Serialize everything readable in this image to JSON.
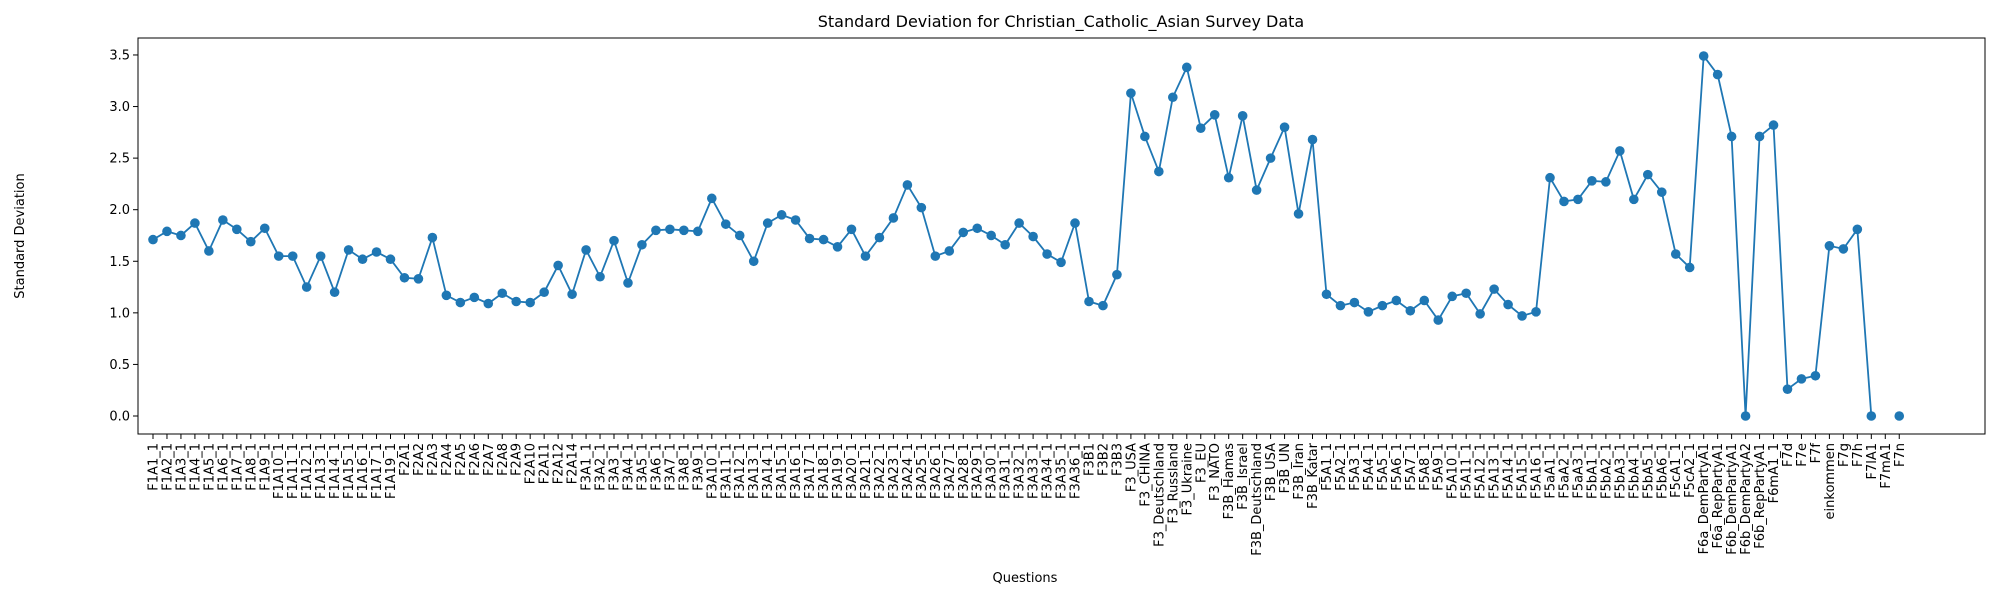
{
  "chart_data": {
    "type": "line",
    "title": "Standard Deviation for Christian_Catholic_Asian Survey Data",
    "x_label": "Questions",
    "y_label": "Standard Deviation",
    "categories": [
      "F1A1_1",
      "F1A2_1",
      "F1A3_1",
      "F1A4_1",
      "F1A5_1",
      "F1A6_1",
      "F1A7_1",
      "F1A8_1",
      "F1A9_1",
      "F1A10_1",
      "F1A11_1",
      "F1A12_1",
      "F1A13_1",
      "F1A14_1",
      "F1A15_1",
      "F1A16_1",
      "F1A17_1",
      "F1A19_1",
      "F2A1",
      "F2A2",
      "F2A3",
      "F2A4",
      "F2A5",
      "F2A6",
      "F2A7",
      "F2A8",
      "F2A9",
      "F2A10",
      "F2A11",
      "F2A12",
      "F2A14",
      "F3A1_1",
      "F3A2_1",
      "F3A3_1",
      "F3A4_1",
      "F3A5_1",
      "F3A6_1",
      "F3A7_1",
      "F3A8_1",
      "F3A9_1",
      "F3A10_1",
      "F3A11_1",
      "F3A12_1",
      "F3A13_1",
      "F3A14_1",
      "F3A15_1",
      "F3A16_1",
      "F3A17_1",
      "F3A18_1",
      "F3A19_1",
      "F3A20_1",
      "F3A21_1",
      "F3A22_1",
      "F3A23_1",
      "F3A24_1",
      "F3A25_1",
      "F3A26_1",
      "F3A27_1",
      "F3A28_1",
      "F3A29_1",
      "F3A30_1",
      "F3A31_1",
      "F3A32_1",
      "F3A33_1",
      "F3A34_1",
      "F3A35_1",
      "F3A36_1",
      "F3B1",
      "F3B2",
      "F3B3",
      "F3_USA",
      "F3_CHINA",
      "F3_Deutschland",
      "F3_Russland",
      "F3_Ukraine",
      "F3_EU",
      "F3_NATO",
      "F3B_Hamas",
      "F3B_Israel",
      "F3B_Deutschland",
      "F3B_USA",
      "F3B_UN",
      "F3B_Iran",
      "F3B_Katar",
      "F5A1_1",
      "F5A2_1",
      "F5A3_1",
      "F5A4_1",
      "F5A5_1",
      "F5A6_1",
      "F5A7_1",
      "F5A8_1",
      "F5A9_1",
      "F5A10_1",
      "F5A11_1",
      "F5A12_1",
      "F5A13_1",
      "F5A14_1",
      "F5A15_1",
      "F5A16_1",
      "F5aA1_1",
      "F5aA2_1",
      "F5aA3_1",
      "F5bA1_1",
      "F5bA2_1",
      "F5bA3_1",
      "F5bA4_1",
      "F5bA5_1",
      "F5bA6_1",
      "F5cA1_1",
      "F5cA2_1",
      "F6a_DemPartyA1",
      "F6a_RepPartyA1",
      "F6b_DemPartyA1",
      "F6b_DemPartyA2",
      "F6b_RepPartyA1",
      "F6mA1_1",
      "F7d",
      "F7e",
      "F7f",
      "einkommen",
      "F7g",
      "F7h",
      "F7lA1",
      "F7mA1",
      "F7n"
    ],
    "series": [
      {
        "name": "Standard Deviation",
        "color": "#1f77b4",
        "values": [
          1.71,
          1.79,
          1.75,
          1.87,
          1.6,
          1.9,
          1.81,
          1.69,
          1.82,
          1.55,
          1.55,
          1.25,
          1.55,
          1.2,
          1.61,
          1.52,
          1.59,
          1.52,
          1.34,
          1.33,
          1.73,
          1.17,
          1.1,
          1.15,
          1.09,
          1.19,
          1.11,
          1.1,
          1.2,
          1.46,
          1.18,
          1.61,
          1.35,
          1.7,
          1.29,
          1.66,
          1.8,
          1.81,
          1.8,
          1.79,
          2.11,
          1.86,
          1.75,
          1.5,
          1.87,
          1.95,
          1.9,
          1.72,
          1.71,
          1.64,
          1.81,
          1.55,
          1.73,
          1.92,
          2.24,
          2.02,
          1.55,
          1.6,
          1.78,
          1.82,
          1.75,
          1.66,
          1.87,
          1.74,
          1.57,
          1.49,
          1.87,
          1.11,
          1.07,
          1.37,
          3.13,
          2.71,
          2.37,
          3.09,
          3.38,
          2.79,
          2.92,
          2.31,
          2.91,
          2.19,
          2.5,
          2.8,
          1.96,
          2.68,
          1.18,
          1.07,
          1.1,
          1.01,
          1.07,
          1.12,
          1.02,
          1.12,
          0.93,
          1.16,
          1.19,
          0.99,
          1.23,
          1.08,
          0.97,
          1.01,
          2.31,
          2.08,
          2.1,
          2.28,
          2.27,
          2.57,
          2.1,
          2.34,
          2.17,
          1.57,
          1.44,
          3.49,
          3.31,
          2.71,
          0.0,
          2.71,
          2.82,
          0.26,
          0.36,
          0.39,
          1.65,
          1.62,
          1.81,
          0.0,
          null,
          0.0
        ]
      }
    ],
    "ylim": [
      -0.1745,
      3.6645
    ],
    "yticks": [
      {
        "value": 0,
        "label": "0.0"
      },
      0.5,
      {
        "value": 1,
        "label": "1.0"
      },
      1.5,
      {
        "value": 2,
        "label": "2.0"
      },
      2.5,
      {
        "value": 3,
        "label": "3.0"
      },
      3.5
    ],
    "markers": true
  }
}
